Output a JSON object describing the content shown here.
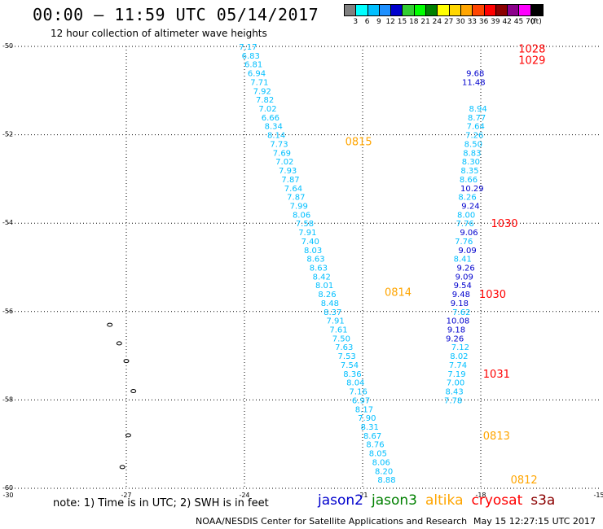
{
  "header": {
    "title": "00:00 – 11:59 UTC 05/14/2017",
    "subtitle": "12 hour collection of altimeter wave heights"
  },
  "color_scale": {
    "colors": [
      "#808080",
      "#00ffff",
      "#00bfff",
      "#1e90ff",
      "#0000cd",
      "#32cd32",
      "#00ff00",
      "#008000",
      "#ffff00",
      "#ffd700",
      "#ffa500",
      "#ff4500",
      "#ff0000",
      "#8b0000",
      "#8b008b",
      "#ff00ff",
      "#000000"
    ],
    "labels": [
      "3",
      "6",
      "9",
      "12",
      "15",
      "18",
      "21",
      "24",
      "27",
      "30",
      "33",
      "36",
      "39",
      "42",
      "45",
      "70",
      "(ft)"
    ]
  },
  "chart_data": {
    "type": "scatter",
    "title": "00:00 – 11:59 UTC 05/14/2017",
    "subtitle": "12 hour collection of altimeter wave heights",
    "x_range": [
      -30,
      -15
    ],
    "y_range": [
      -60,
      -50
    ],
    "x_ticks": [
      -30,
      -27,
      -24,
      -21,
      -18,
      -15
    ],
    "y_ticks": [
      -50,
      -52,
      -54,
      -56,
      -58,
      -60
    ],
    "x_tick_labels": [
      "-30",
      "-27",
      "-24",
      "-21",
      "-18",
      "-15"
    ],
    "y_tick_labels": [
      "-50",
      "-52",
      "-54",
      "-56",
      "-58",
      "-60"
    ],
    "grid": true,
    "series": [
      {
        "name": "altika",
        "color": "#00bfff",
        "points": [
          {
            "lon": -23.91,
            "lat": -50.0,
            "v": "7.17"
          },
          {
            "lon": -23.84,
            "lat": -50.2,
            "v": "6.83"
          },
          {
            "lon": -23.77,
            "lat": -50.4,
            "v": "6.81"
          },
          {
            "lon": -23.69,
            "lat": -50.6,
            "v": "6.94"
          },
          {
            "lon": -23.62,
            "lat": -50.8,
            "v": "7.71"
          },
          {
            "lon": -23.55,
            "lat": -51.0,
            "v": "7.92"
          },
          {
            "lon": -23.48,
            "lat": -51.2,
            "v": "7.82"
          },
          {
            "lon": -23.41,
            "lat": -51.4,
            "v": "7.02"
          },
          {
            "lon": -23.34,
            "lat": -51.6,
            "v": "6.66"
          },
          {
            "lon": -23.26,
            "lat": -51.8,
            "v": "8.34"
          },
          {
            "lon": -23.19,
            "lat": -52.0,
            "v": "8.14"
          },
          {
            "lon": -23.12,
            "lat": -52.2,
            "v": "7.73"
          },
          {
            "lon": -23.05,
            "lat": -52.4,
            "v": "7.69"
          },
          {
            "lon": -22.98,
            "lat": -52.6,
            "v": "7.02"
          },
          {
            "lon": -22.9,
            "lat": -52.8,
            "v": "7.93"
          },
          {
            "lon": -22.83,
            "lat": -53.0,
            "v": "7.87"
          },
          {
            "lon": -22.76,
            "lat": -53.2,
            "v": "7.64"
          },
          {
            "lon": -22.69,
            "lat": -53.4,
            "v": "7.87"
          },
          {
            "lon": -22.62,
            "lat": -53.6,
            "v": "7.99"
          },
          {
            "lon": -22.55,
            "lat": -53.8,
            "v": "8.06"
          },
          {
            "lon": -22.47,
            "lat": -54.0,
            "v": "7.58"
          },
          {
            "lon": -22.4,
            "lat": -54.2,
            "v": "7.91"
          },
          {
            "lon": -22.33,
            "lat": -54.4,
            "v": "7.40"
          },
          {
            "lon": -22.26,
            "lat": -54.6,
            "v": "8.03"
          },
          {
            "lon": -22.19,
            "lat": -54.8,
            "v": "8.63"
          },
          {
            "lon": -22.12,
            "lat": -55.0,
            "v": "8.63"
          },
          {
            "lon": -22.04,
            "lat": -55.2,
            "v": "8.42"
          },
          {
            "lon": -21.97,
            "lat": -55.4,
            "v": "8.01"
          },
          {
            "lon": -21.9,
            "lat": -55.6,
            "v": "8.26"
          },
          {
            "lon": -21.83,
            "lat": -55.8,
            "v": "8.48"
          },
          {
            "lon": -21.76,
            "lat": -56.0,
            "v": "8.37"
          },
          {
            "lon": -21.69,
            "lat": -56.2,
            "v": "7.91"
          },
          {
            "lon": -21.61,
            "lat": -56.4,
            "v": "7.61"
          },
          {
            "lon": -21.54,
            "lat": -56.6,
            "v": "7.50"
          },
          {
            "lon": -21.47,
            "lat": -56.8,
            "v": "7.63"
          },
          {
            "lon": -21.4,
            "lat": -57.0,
            "v": "7.53"
          },
          {
            "lon": -21.33,
            "lat": -57.2,
            "v": "7.54"
          },
          {
            "lon": -21.26,
            "lat": -57.4,
            "v": "8.36"
          },
          {
            "lon": -21.18,
            "lat": -57.6,
            "v": "8.04"
          },
          {
            "lon": -21.11,
            "lat": -57.8,
            "v": "7.16"
          },
          {
            "lon": -21.04,
            "lat": -58.0,
            "v": "6.97"
          },
          {
            "lon": -20.96,
            "lat": -58.2,
            "v": "8.17"
          },
          {
            "lon": -20.89,
            "lat": -58.4,
            "v": "7.90"
          },
          {
            "lon": -20.82,
            "lat": -58.6,
            "v": "8.31"
          },
          {
            "lon": -20.75,
            "lat": -58.8,
            "v": "8.67"
          },
          {
            "lon": -20.68,
            "lat": -59.0,
            "v": "8.76"
          },
          {
            "lon": -20.61,
            "lat": -59.2,
            "v": "8.05"
          },
          {
            "lon": -20.53,
            "lat": -59.4,
            "v": "8.06"
          },
          {
            "lon": -20.46,
            "lat": -59.6,
            "v": "8.20"
          },
          {
            "lon": -20.39,
            "lat": -59.8,
            "v": "8.88"
          }
        ]
      },
      {
        "name": "jason2",
        "color": "#0000cd",
        "points": [
          {
            "lon": -18.14,
            "lat": -50.6,
            "v": "9.68"
          },
          {
            "lon": -18.18,
            "lat": -50.8,
            "v": "11.48"
          },
          {
            "lon": -18.22,
            "lat": -53.2,
            "v": "10.29"
          },
          {
            "lon": -18.26,
            "lat": -53.6,
            "v": "9.24"
          },
          {
            "lon": -18.3,
            "lat": -54.2,
            "v": "9.06"
          },
          {
            "lon": -18.34,
            "lat": -54.6,
            "v": "9.09"
          },
          {
            "lon": -18.38,
            "lat": -55.0,
            "v": "9.26"
          },
          {
            "lon": -18.42,
            "lat": -55.2,
            "v": "9.09"
          },
          {
            "lon": -18.46,
            "lat": -55.4,
            "v": "9.54"
          },
          {
            "lon": -18.5,
            "lat": -55.6,
            "v": "9.48"
          },
          {
            "lon": -18.54,
            "lat": -55.8,
            "v": "9.18"
          },
          {
            "lon": -18.58,
            "lat": -56.2,
            "v": "10.08"
          },
          {
            "lon": -18.62,
            "lat": -56.4,
            "v": "9.18"
          },
          {
            "lon": -18.66,
            "lat": -56.6,
            "v": "9.26"
          }
        ]
      },
      {
        "name": "cryosat",
        "color": "#00bfff",
        "points": [
          {
            "lon": -18.07,
            "lat": -51.4,
            "v": "8.94"
          },
          {
            "lon": -18.1,
            "lat": -51.6,
            "v": "8.77"
          },
          {
            "lon": -18.13,
            "lat": -51.8,
            "v": "7.64"
          },
          {
            "lon": -18.16,
            "lat": -52.0,
            "v": "7.26"
          },
          {
            "lon": -18.19,
            "lat": -52.2,
            "v": "8.50"
          },
          {
            "lon": -18.22,
            "lat": -52.4,
            "v": "8.83"
          },
          {
            "lon": -18.25,
            "lat": -52.6,
            "v": "8.30"
          },
          {
            "lon": -18.28,
            "lat": -52.8,
            "v": "8.35"
          },
          {
            "lon": -18.31,
            "lat": -53.0,
            "v": "8.66"
          },
          {
            "lon": -18.34,
            "lat": -53.4,
            "v": "8.26"
          },
          {
            "lon": -18.37,
            "lat": -53.8,
            "v": "8.00"
          },
          {
            "lon": -18.4,
            "lat": -54.0,
            "v": "7.76"
          },
          {
            "lon": -18.43,
            "lat": -54.4,
            "v": "7.76"
          },
          {
            "lon": -18.46,
            "lat": -54.8,
            "v": "8.41"
          },
          {
            "lon": -18.49,
            "lat": -56.0,
            "v": "7.62"
          },
          {
            "lon": -18.52,
            "lat": -56.8,
            "v": "7.12"
          },
          {
            "lon": -18.55,
            "lat": -57.0,
            "v": "8.02"
          },
          {
            "lon": -18.58,
            "lat": -57.2,
            "v": "7.74"
          },
          {
            "lon": -18.61,
            "lat": -57.4,
            "v": "7.19"
          },
          {
            "lon": -18.64,
            "lat": -57.6,
            "v": "7.00"
          },
          {
            "lon": -18.67,
            "lat": -57.8,
            "v": "8.43"
          },
          {
            "lon": -18.7,
            "lat": -58.0,
            "v": "7.78"
          }
        ]
      }
    ],
    "time_labels": [
      {
        "text": "1028",
        "lon": -16.7,
        "lat": -50.05,
        "color": "#ff0000"
      },
      {
        "text": "1029",
        "lon": -16.7,
        "lat": -50.3,
        "color": "#ff0000"
      },
      {
        "text": "0815",
        "lon": -21.1,
        "lat": -52.15,
        "color": "#ffa500"
      },
      {
        "text": "1030",
        "lon": -17.4,
        "lat": -54.0,
        "color": "#ff0000"
      },
      {
        "text": "0814",
        "lon": -20.1,
        "lat": -55.55,
        "color": "#ffa500"
      },
      {
        "text": "1030",
        "lon": -17.7,
        "lat": -55.6,
        "color": "#ff0000"
      },
      {
        "text": "1031",
        "lon": -17.6,
        "lat": -57.4,
        "color": "#ff0000"
      },
      {
        "text": "0813",
        "lon": -17.6,
        "lat": -58.8,
        "color": "#ffa500"
      },
      {
        "text": "0812",
        "lon": -16.9,
        "lat": -59.8,
        "color": "#ffa500"
      }
    ],
    "islands": [
      {
        "lon": -27.42,
        "lat": -56.3
      },
      {
        "lon": -27.18,
        "lat": -56.72
      },
      {
        "lon": -27.0,
        "lat": -57.12
      },
      {
        "lon": -26.82,
        "lat": -57.8
      },
      {
        "lon": -26.95,
        "lat": -58.8
      },
      {
        "lon": -27.1,
        "lat": -59.52
      }
    ]
  },
  "footer": {
    "note": "note:  1) Time is in UTC; 2) SWH is in feet",
    "satellites": [
      {
        "name": "jason2",
        "color": "#0000cd"
      },
      {
        "name": "jason3",
        "color": "#008000"
      },
      {
        "name": "altika",
        "color": "#ffa500"
      },
      {
        "name": "cryosat",
        "color": "#ff0000"
      },
      {
        "name": "s3a",
        "color": "#8b0000"
      }
    ],
    "credit": "NOAA/NESDIS Center for Satellite Applications and Research",
    "timestamp": "May 15 12:27:15 UTC 2017"
  }
}
